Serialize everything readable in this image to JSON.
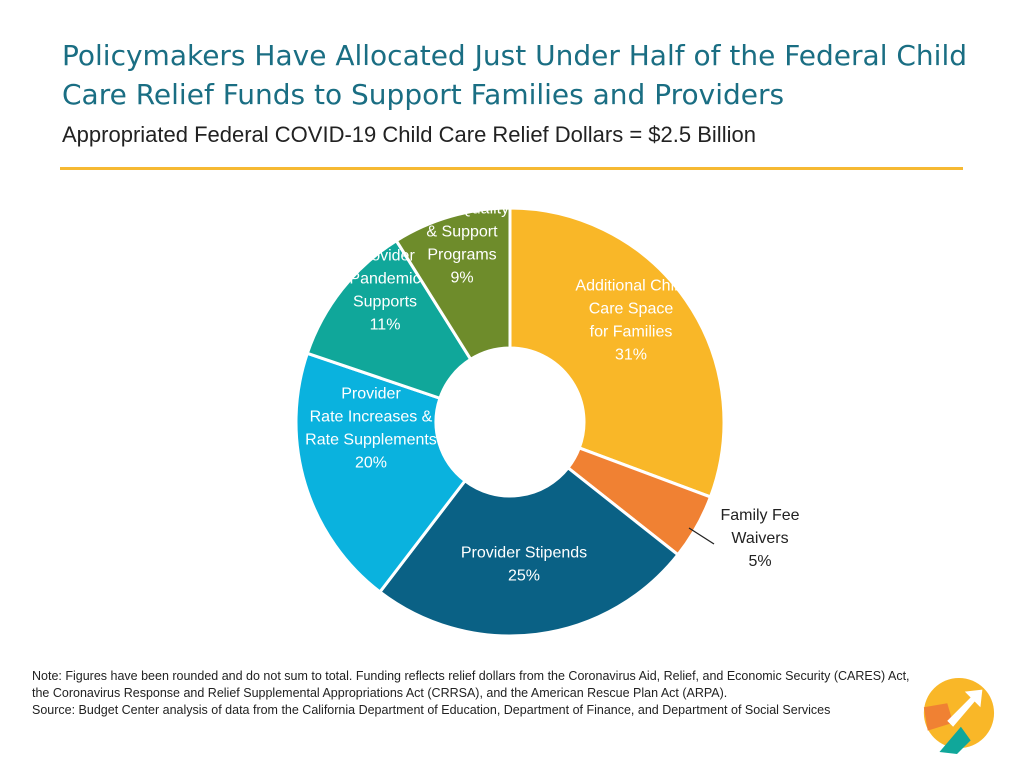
{
  "header": {
    "title": "Policymakers Have Allocated Just Under Half of the Federal Child Care Relief Funds to Support Families and Providers",
    "subtitle": "Appropriated Federal COVID-19 Child Care Relief Dollars = $2.5 Billion"
  },
  "chart_data": {
    "type": "pie",
    "style": "donut",
    "title": "",
    "slices": [
      {
        "label": [
          "Additional Child",
          "Care Space",
          "for Families",
          "31%"
        ],
        "value": 31,
        "color": "#f9b728",
        "label_color": "#ffffff"
      },
      {
        "label": [
          "Family Fee",
          "Waivers",
          "5%"
        ],
        "value": 5,
        "color": "#f08133",
        "label_color": "#222222"
      },
      {
        "label": [
          "Provider Stipends",
          "25%"
        ],
        "value": 25,
        "color": "#0a6185",
        "label_color": "#ffffff"
      },
      {
        "label": [
          "Provider",
          "Rate Increases &",
          "Rate Supplements",
          "20%"
        ],
        "value": 20,
        "color": "#0ab2de",
        "label_color": "#ffffff"
      },
      {
        "label": [
          "Provider",
          "Pandemic",
          "Supports",
          "11%"
        ],
        "value": 11,
        "color": "#10a79a",
        "label_color": "#ffffff"
      },
      {
        "label": [
          "Other Quality",
          "& Support",
          "Programs",
          "9%"
        ],
        "value": 9,
        "color": "#6e8c2b",
        "label_color": "#ffffff"
      }
    ]
  },
  "notes": {
    "note": "Note: Figures have been rounded and do not sum to total. Funding reflects relief dollars from the Coronavirus Aid, Relief, and Economic Security (CARES) Act, the Coronavirus Response and Relief Supplemental Appropriations Act (CRRSA), and the American Rescue Plan Act (ARPA).",
    "source": "Source: Budget Center analysis of data from the California Department of Education, Department of Finance, and Department of Social Services"
  },
  "logo": {
    "colors": [
      "#f9b728",
      "#f08133",
      "#10a79a",
      "#1a6e83"
    ]
  }
}
